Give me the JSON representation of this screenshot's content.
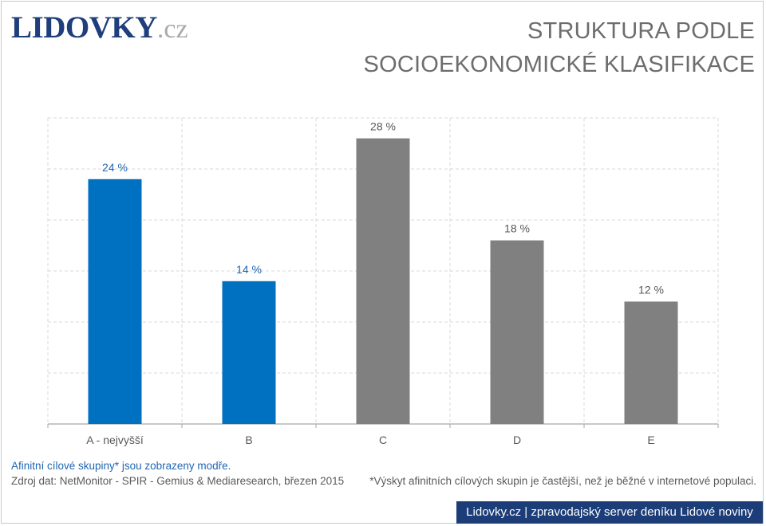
{
  "logo": {
    "name": "LIDOVKY",
    "tld": ".cz"
  },
  "title": {
    "line1": "STRUKTURA PODLE",
    "line2": "SOCIOEKONOMICKÉ KLASIFIKACE"
  },
  "chart_data": {
    "type": "bar",
    "categories": [
      "A - nejvyšší",
      "B",
      "C",
      "D",
      "E"
    ],
    "values": [
      24,
      14,
      28,
      18,
      12
    ],
    "value_labels": [
      "24 %",
      "14 %",
      "28 %",
      "18 %",
      "12 %"
    ],
    "highlighted": [
      true,
      true,
      false,
      false,
      false
    ],
    "ylim": [
      0,
      30
    ],
    "grid": true,
    "colors": {
      "highlight": "#0070c0",
      "other": "#808080"
    }
  },
  "notes": {
    "highlight_note": "Afinitní cílové skupiny* jsou zobrazeny modře.",
    "source": "Zdroj dat: NetMonitor - SPIR - Gemius & Mediaresearch, březen 2015",
    "footnote": "*Výskyt afinitních cílových skupin je častější, než je běžné v internetové populaci."
  },
  "footer": {
    "text": "Lidovky.cz | zpravodajský server deníku Lidové noviny"
  }
}
